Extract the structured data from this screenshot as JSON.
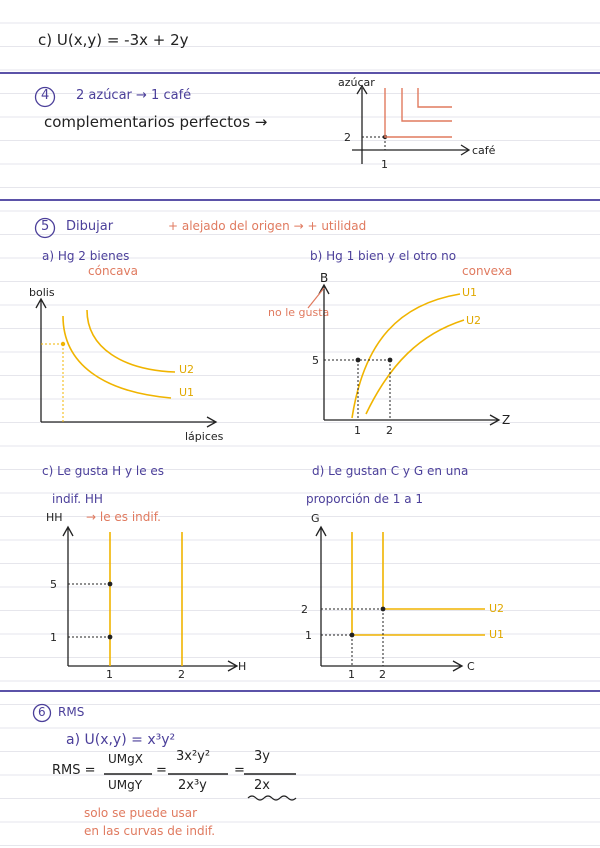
{
  "colors": {
    "ink": "#222222",
    "heading": "#4b3f9a",
    "note": "#e07a5f",
    "curve": "#f0b400",
    "separator": "#5b52a8"
  },
  "top": {
    "formula": "c) U(x,y) = -3x + 2y"
  },
  "q4": {
    "number": "4",
    "statement": "2 azúcar → 1 café",
    "answer": "complementarios perfectos →",
    "graph": {
      "ylabel": "azúcar",
      "xlabel": "café",
      "ytick": "2",
      "xtick": "1"
    }
  },
  "q5": {
    "number": "5",
    "title": "Dibujar",
    "note": "+ alejado del origen → + utilidad",
    "a": {
      "label": "a) Hg 2 bienes",
      "sublabel": "cóncava",
      "ylabel": "bolis",
      "xlabel": "lápices",
      "curves": [
        "U2",
        "U1"
      ]
    },
    "b": {
      "label": "b) Hg 1 bien y el otro no",
      "sublabel": "convexa",
      "note": "no le gusta",
      "ylabel": "B",
      "xlabel": "Z",
      "yticks": [
        "5"
      ],
      "xticks": [
        "1",
        "2"
      ],
      "curves": [
        "U1",
        "U2"
      ]
    },
    "c": {
      "label": "c) Le gusta H y le es",
      "label2": "indif. HH",
      "note": "→ le es indif.",
      "ylabel": "HH",
      "xlabel": "H",
      "yticks": [
        "5",
        "1"
      ],
      "xticks": [
        "1",
        "2"
      ]
    },
    "d": {
      "label": "d) Le gustan C y G en una",
      "label2": "proporción de 1 a 1",
      "ylabel": "G",
      "xlabel": "C",
      "yticks": [
        "2",
        "1"
      ],
      "xticks": [
        "1",
        "2"
      ],
      "curves": [
        "U2",
        "U1"
      ]
    }
  },
  "q6": {
    "number": "6",
    "title": "RMS",
    "function": "a) U(x,y) = x³y²",
    "rms_label": "RMS =",
    "umg_x": "UMgX",
    "umg_y": "UMgY",
    "num2": "3x²y²",
    "den2": "2x³y",
    "num3": "3y",
    "den3": "2x",
    "note_line1": "solo se puede usar",
    "note_line2": "en las curvas de indif."
  }
}
